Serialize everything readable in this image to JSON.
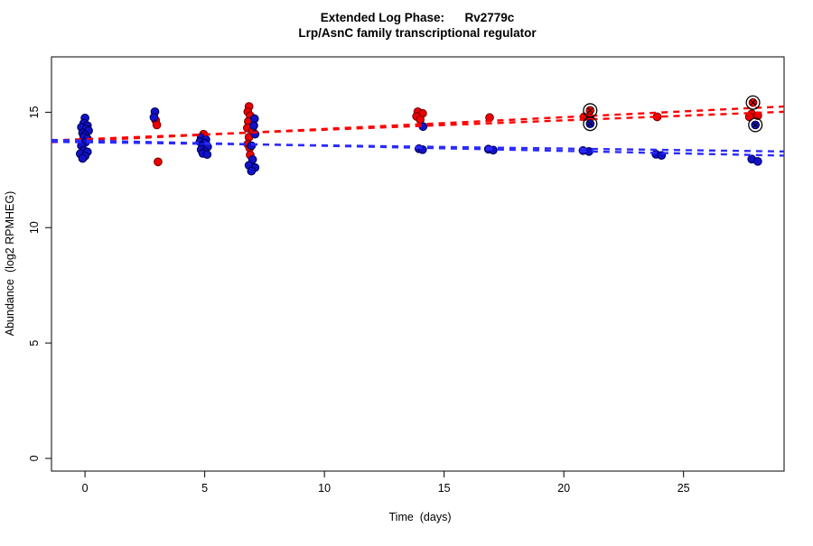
{
  "figure": {
    "title": "Extended Log Phase:      Rv2779c",
    "subtitle": "Lrp/AsnC family transcriptional regulator"
  },
  "chart_data": {
    "type": "scatter",
    "title": "Extended Log Phase:      Rv2779c",
    "subtitle": "Lrp/AsnC family transcriptional regulator",
    "xlabel": "Time  (days)",
    "ylabel": "Abundance  (log2 RPMHEG)",
    "xlim": [
      -1.4,
      29.2
    ],
    "ylim": [
      -0.55,
      17.4
    ],
    "x_ticks": [
      0,
      5,
      10,
      15,
      20,
      25
    ],
    "y_ticks": [
      0,
      5,
      10,
      15
    ],
    "grid": false,
    "legend": "none",
    "colors": {
      "red_fill": "#ee0000",
      "red_edge": "#7a0000",
      "blue_fill": "#1111cc",
      "blue_edge": "#000055",
      "red_line": "#ff0000",
      "blue_line": "#2a2aff",
      "outlier_ring": "#000000"
    },
    "series": [
      {
        "name": "red-condition",
        "points": [
          [
            2.95,
            14.65
          ],
          [
            3.0,
            14.45
          ],
          [
            3.05,
            12.85
          ],
          [
            4.95,
            14.05
          ],
          [
            6.85,
            15.25
          ],
          [
            6.8,
            15.02
          ],
          [
            6.9,
            14.85
          ],
          [
            6.82,
            14.6
          ],
          [
            6.78,
            14.32
          ],
          [
            7.0,
            14.2
          ],
          [
            6.85,
            13.92
          ],
          [
            6.8,
            13.62
          ],
          [
            6.88,
            13.45
          ],
          [
            6.9,
            13.15
          ],
          [
            13.9,
            15.02
          ],
          [
            14.1,
            14.95
          ],
          [
            13.85,
            14.82
          ],
          [
            14.0,
            14.68
          ],
          [
            16.9,
            14.77
          ],
          [
            20.85,
            14.8
          ],
          [
            21.1,
            14.77
          ],
          [
            23.9,
            14.8
          ],
          [
            27.85,
            14.93
          ],
          [
            28.1,
            14.85
          ],
          [
            27.75,
            14.8
          ]
        ]
      },
      {
        "name": "blue-condition",
        "points": [
          [
            0.0,
            14.75
          ],
          [
            -0.05,
            14.52
          ],
          [
            0.1,
            14.42
          ],
          [
            -0.15,
            14.35
          ],
          [
            0.05,
            14.28
          ],
          [
            0.15,
            14.2
          ],
          [
            -0.1,
            14.1
          ],
          [
            0.0,
            14.02
          ],
          [
            -0.05,
            13.93
          ],
          [
            0.1,
            13.85
          ],
          [
            0.02,
            13.7
          ],
          [
            -0.15,
            13.55
          ],
          [
            -0.05,
            13.35
          ],
          [
            0.1,
            13.28
          ],
          [
            -0.2,
            13.2
          ],
          [
            0.0,
            13.1
          ],
          [
            -0.1,
            13.0
          ],
          [
            2.92,
            15.02
          ],
          [
            2.88,
            14.78
          ],
          [
            4.85,
            13.9
          ],
          [
            5.05,
            13.82
          ],
          [
            4.8,
            13.72
          ],
          [
            5.0,
            13.66
          ],
          [
            4.9,
            13.56
          ],
          [
            5.12,
            13.5
          ],
          [
            4.85,
            13.38
          ],
          [
            5.0,
            13.3
          ],
          [
            4.92,
            13.22
          ],
          [
            5.1,
            13.17
          ],
          [
            7.08,
            14.72
          ],
          [
            7.05,
            14.42
          ],
          [
            7.1,
            14.05
          ],
          [
            6.95,
            13.55
          ],
          [
            7.0,
            12.95
          ],
          [
            6.85,
            12.7
          ],
          [
            7.1,
            12.6
          ],
          [
            6.95,
            12.45
          ],
          [
            14.12,
            14.38
          ],
          [
            13.95,
            13.42
          ],
          [
            14.1,
            13.38
          ],
          [
            16.85,
            13.4
          ],
          [
            17.05,
            13.36
          ],
          [
            20.8,
            13.34
          ],
          [
            21.05,
            13.3
          ],
          [
            23.85,
            13.18
          ],
          [
            24.08,
            13.13
          ],
          [
            27.85,
            12.97
          ],
          [
            28.1,
            12.87
          ]
        ]
      }
    ],
    "outliers": [
      {
        "series": "red-condition",
        "x": 21.1,
        "y": 15.08
      },
      {
        "series": "red-condition",
        "x": 27.9,
        "y": 15.42
      },
      {
        "series": "blue-condition",
        "x": 21.1,
        "y": 14.5
      },
      {
        "series": "blue-condition",
        "x": 28.0,
        "y": 14.45
      }
    ],
    "trend_lines": [
      {
        "series": "red-condition",
        "x1": -1.4,
        "y1": 13.7,
        "x2": 29.2,
        "y2": 15.25
      },
      {
        "series": "red-condition",
        "x1": -1.4,
        "y1": 13.78,
        "x2": 29.2,
        "y2": 15.02
      },
      {
        "series": "blue-condition",
        "x1": -1.4,
        "y1": 13.8,
        "x2": 29.2,
        "y2": 13.12
      },
      {
        "series": "blue-condition",
        "x1": -1.4,
        "y1": 13.72,
        "x2": 29.2,
        "y2": 13.3
      }
    ]
  }
}
